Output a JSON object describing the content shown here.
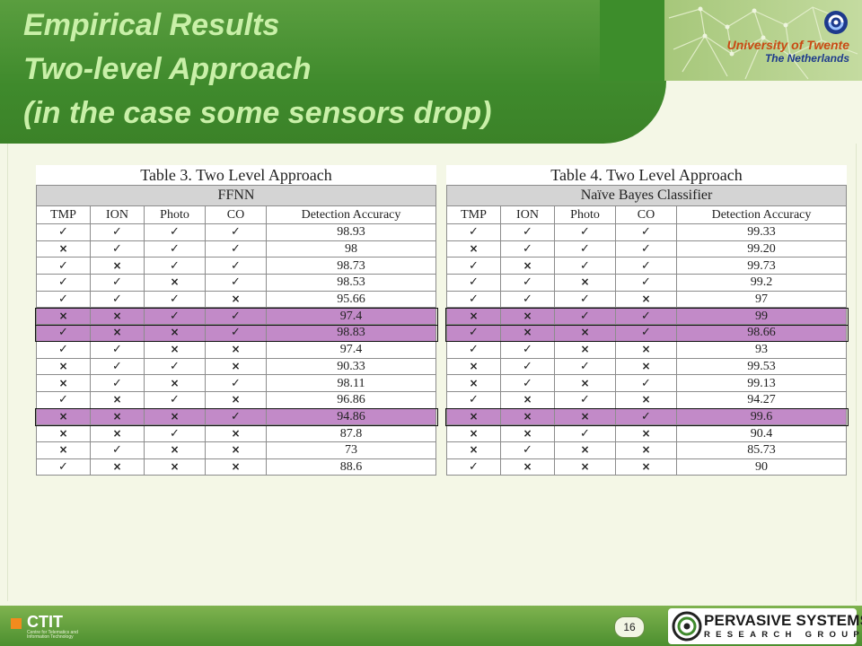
{
  "slide": {
    "title_lines": [
      "Empirical Results",
      "Two-level Approach",
      "(in the case some sensors drop)"
    ],
    "page_number": "16"
  },
  "university_logo": {
    "line1": "University of Twente",
    "line2": "The Netherlands",
    "icon": "university-emblem-icon"
  },
  "footer": {
    "ctit_label": "CTIT",
    "ctit_sub": "Centre for Telematics and Information Technology",
    "ps_title": "PERVASIVE SYSTEMS",
    "ps_sub": "RESEARCH GROUP",
    "ps_icon": "pervasive-systems-emblem-icon"
  },
  "colors": {
    "header_green": "#3f8a2c",
    "title_text": "#c9f0a8",
    "highlight_row": "#c28ac8"
  },
  "tables": [
    {
      "caption": "Table 3. Two Level Approach",
      "group_header": "FFNN",
      "columns": [
        "TMP",
        "ION",
        "Photo",
        "CO",
        "Detection Accuracy"
      ],
      "rows": [
        {
          "marks": [
            "✓",
            "✓",
            "✓",
            "✓"
          ],
          "accuracy": "98.93",
          "highlight": false
        },
        {
          "marks": [
            "×",
            "✓",
            "✓",
            "✓"
          ],
          "accuracy": "98",
          "highlight": false
        },
        {
          "marks": [
            "✓",
            "×",
            "✓",
            "✓"
          ],
          "accuracy": "98.73",
          "highlight": false
        },
        {
          "marks": [
            "✓",
            "✓",
            "×",
            "✓"
          ],
          "accuracy": "98.53",
          "highlight": false
        },
        {
          "marks": [
            "✓",
            "✓",
            "✓",
            "×"
          ],
          "accuracy": "95.66",
          "highlight": false
        },
        {
          "marks": [
            "×",
            "×",
            "✓",
            "✓"
          ],
          "accuracy": "97.4",
          "highlight": true
        },
        {
          "marks": [
            "✓",
            "×",
            "×",
            "✓"
          ],
          "accuracy": "98.83",
          "highlight": true
        },
        {
          "marks": [
            "✓",
            "✓",
            "×",
            "×"
          ],
          "accuracy": "97.4",
          "highlight": false
        },
        {
          "marks": [
            "×",
            "✓",
            "✓",
            "×"
          ],
          "accuracy": "90.33",
          "highlight": false
        },
        {
          "marks": [
            "×",
            "✓",
            "×",
            "✓"
          ],
          "accuracy": "98.11",
          "highlight": false
        },
        {
          "marks": [
            "✓",
            "×",
            "✓",
            "×"
          ],
          "accuracy": "96.86",
          "highlight": false
        },
        {
          "marks": [
            "×",
            "×",
            "×",
            "✓"
          ],
          "accuracy": "94.86",
          "highlight": true
        },
        {
          "marks": [
            "×",
            "×",
            "✓",
            "×"
          ],
          "accuracy": "87.8",
          "highlight": false
        },
        {
          "marks": [
            "×",
            "✓",
            "×",
            "×"
          ],
          "accuracy": "73",
          "highlight": false
        },
        {
          "marks": [
            "✓",
            "×",
            "×",
            "×"
          ],
          "accuracy": "88.6",
          "highlight": false
        }
      ]
    },
    {
      "caption": "Table 4. Two Level Approach",
      "group_header": "Naïve Bayes Classifier",
      "columns": [
        "TMP",
        "ION",
        "Photo",
        "CO",
        "Detection Accuracy"
      ],
      "rows": [
        {
          "marks": [
            "✓",
            "✓",
            "✓",
            "✓"
          ],
          "accuracy": "99.33",
          "highlight": false
        },
        {
          "marks": [
            "×",
            "✓",
            "✓",
            "✓"
          ],
          "accuracy": "99.20",
          "highlight": false
        },
        {
          "marks": [
            "✓",
            "×",
            "✓",
            "✓"
          ],
          "accuracy": "99.73",
          "highlight": false
        },
        {
          "marks": [
            "✓",
            "✓",
            "×",
            "✓"
          ],
          "accuracy": "99.2",
          "highlight": false
        },
        {
          "marks": [
            "✓",
            "✓",
            "✓",
            "×"
          ],
          "accuracy": "97",
          "highlight": false
        },
        {
          "marks": [
            "×",
            "×",
            "✓",
            "✓"
          ],
          "accuracy": "99",
          "highlight": true
        },
        {
          "marks": [
            "✓",
            "×",
            "×",
            "✓"
          ],
          "accuracy": "98.66",
          "highlight": true
        },
        {
          "marks": [
            "✓",
            "✓",
            "×",
            "×"
          ],
          "accuracy": "93",
          "highlight": false
        },
        {
          "marks": [
            "×",
            "✓",
            "✓",
            "×"
          ],
          "accuracy": "99.53",
          "highlight": false
        },
        {
          "marks": [
            "×",
            "✓",
            "×",
            "✓"
          ],
          "accuracy": "99.13",
          "highlight": false
        },
        {
          "marks": [
            "✓",
            "×",
            "✓",
            "×"
          ],
          "accuracy": "94.27",
          "highlight": false
        },
        {
          "marks": [
            "×",
            "×",
            "×",
            "✓"
          ],
          "accuracy": "99.6",
          "highlight": true
        },
        {
          "marks": [
            "×",
            "×",
            "✓",
            "×"
          ],
          "accuracy": "90.4",
          "highlight": false
        },
        {
          "marks": [
            "×",
            "✓",
            "×",
            "×"
          ],
          "accuracy": "85.73",
          "highlight": false
        },
        {
          "marks": [
            "✓",
            "×",
            "×",
            "×"
          ],
          "accuracy": "90",
          "highlight": false
        }
      ]
    }
  ]
}
